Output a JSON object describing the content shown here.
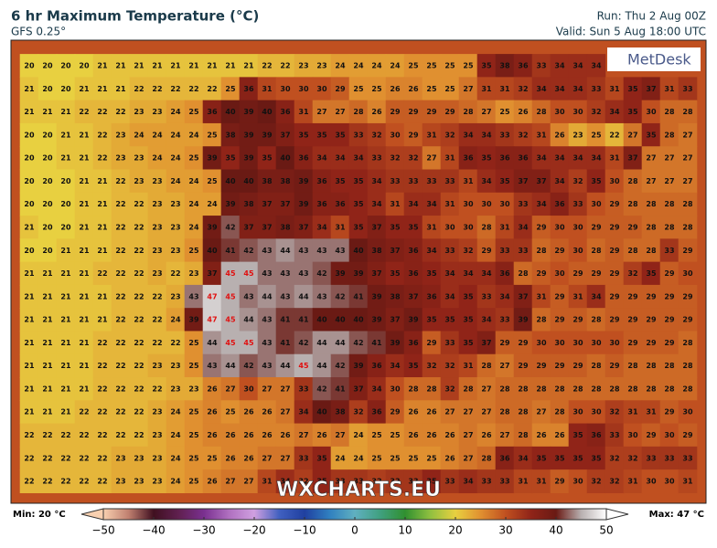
{
  "header": {
    "title": "6 hr Maximum Temperature (°C)",
    "subtitle": "GFS 0.25°",
    "run": "Run: Thu 2 Aug 00Z",
    "valid": "Valid: Sun 5 Aug 18:00 UTC"
  },
  "logo": "MetDesk",
  "watermark": "WXCHARTS.EU",
  "grid": {
    "rows": [
      [
        20,
        20,
        20,
        20,
        21,
        21,
        21,
        21,
        21,
        21,
        21,
        21,
        21,
        22,
        22,
        23,
        23,
        24,
        24,
        24,
        24,
        25,
        25,
        25,
        25,
        35,
        38,
        36,
        33,
        34,
        34,
        34
      ],
      [
        21,
        20,
        20,
        21,
        21,
        21,
        22,
        22,
        22,
        22,
        22,
        25,
        36,
        31,
        30,
        30,
        30,
        29,
        25,
        25,
        26,
        26,
        25,
        25,
        27,
        31,
        31,
        32,
        34,
        34,
        34,
        33,
        31,
        35,
        37,
        31,
        33
      ],
      [
        21,
        21,
        21,
        22,
        22,
        22,
        23,
        23,
        24,
        25,
        36,
        40,
        39,
        40,
        36,
        31,
        27,
        27,
        28,
        26,
        29,
        29,
        29,
        29,
        28,
        27,
        25,
        26,
        28,
        30,
        30,
        32,
        34,
        35,
        30,
        28,
        28
      ],
      [
        20,
        20,
        21,
        21,
        22,
        23,
        24,
        24,
        24,
        24,
        25,
        38,
        39,
        39,
        37,
        35,
        35,
        35,
        33,
        32,
        30,
        29,
        31,
        32,
        34,
        34,
        33,
        32,
        31,
        26,
        23,
        25,
        22,
        27,
        35,
        28,
        27
      ],
      [
        20,
        20,
        21,
        21,
        22,
        23,
        23,
        24,
        24,
        25,
        39,
        35,
        39,
        35,
        40,
        36,
        34,
        34,
        34,
        33,
        32,
        32,
        27,
        31,
        36,
        35,
        36,
        36,
        34,
        34,
        34,
        34,
        31,
        37,
        27,
        27,
        27
      ],
      [
        20,
        20,
        20,
        21,
        21,
        22,
        23,
        23,
        24,
        24,
        25,
        40,
        40,
        38,
        38,
        39,
        36,
        35,
        35,
        34,
        33,
        33,
        33,
        33,
        31,
        34,
        35,
        37,
        37,
        34,
        32,
        35,
        30,
        28,
        27,
        27,
        27
      ],
      [
        20,
        20,
        20,
        21,
        21,
        22,
        22,
        23,
        23,
        24,
        24,
        39,
        38,
        37,
        37,
        39,
        36,
        36,
        35,
        34,
        31,
        34,
        34,
        31,
        30,
        30,
        30,
        33,
        34,
        36,
        33,
        30,
        29,
        28,
        28,
        28,
        28
      ],
      [
        21,
        20,
        20,
        21,
        21,
        22,
        22,
        23,
        23,
        24,
        39,
        42,
        37,
        37,
        38,
        37,
        34,
        31,
        35,
        37,
        35,
        35,
        31,
        30,
        30,
        28,
        31,
        34,
        29,
        30,
        30,
        29,
        29,
        29,
        28,
        28,
        28
      ],
      [
        20,
        20,
        21,
        21,
        21,
        22,
        22,
        23,
        23,
        25,
        40,
        41,
        42,
        43,
        44,
        43,
        43,
        43,
        40,
        38,
        37,
        36,
        34,
        33,
        32,
        29,
        33,
        33,
        28,
        29,
        30,
        28,
        29,
        28,
        28,
        33,
        29
      ],
      [
        21,
        21,
        21,
        21,
        22,
        22,
        22,
        23,
        22,
        23,
        37,
        45,
        45,
        43,
        43,
        43,
        42,
        39,
        39,
        37,
        35,
        36,
        35,
        34,
        34,
        34,
        36,
        28,
        29,
        30,
        29,
        29,
        29,
        32,
        35,
        29,
        30
      ],
      [
        21,
        21,
        21,
        21,
        21,
        22,
        22,
        22,
        23,
        43,
        47,
        45,
        43,
        44,
        43,
        44,
        43,
        42,
        41,
        39,
        38,
        37,
        36,
        34,
        35,
        33,
        34,
        37,
        31,
        29,
        31,
        34,
        29,
        29,
        29,
        29,
        29
      ],
      [
        21,
        21,
        21,
        21,
        21,
        22,
        22,
        22,
        24,
        39,
        47,
        45,
        44,
        43,
        41,
        41,
        40,
        40,
        40,
        39,
        37,
        39,
        35,
        35,
        35,
        34,
        33,
        39,
        28,
        29,
        29,
        28,
        29,
        29,
        29,
        29,
        29
      ],
      [
        21,
        21,
        21,
        21,
        22,
        22,
        22,
        22,
        22,
        25,
        44,
        45,
        45,
        43,
        41,
        42,
        44,
        44,
        42,
        41,
        39,
        36,
        29,
        33,
        35,
        37,
        29,
        29,
        30,
        30,
        30,
        30,
        30,
        29,
        29,
        29,
        28
      ],
      [
        21,
        21,
        21,
        21,
        22,
        22,
        22,
        23,
        23,
        25,
        43,
        44,
        42,
        43,
        44,
        45,
        44,
        42,
        39,
        36,
        34,
        35,
        32,
        32,
        31,
        28,
        27,
        29,
        29,
        29,
        29,
        28,
        29,
        28,
        28,
        28,
        28
      ],
      [
        21,
        21,
        21,
        21,
        22,
        22,
        22,
        22,
        23,
        23,
        26,
        27,
        30,
        27,
        27,
        33,
        42,
        41,
        37,
        34,
        30,
        28,
        28,
        32,
        28,
        27,
        28,
        28,
        28,
        28,
        28,
        28,
        28,
        28,
        28,
        28,
        28
      ],
      [
        21,
        21,
        21,
        22,
        22,
        22,
        22,
        23,
        24,
        25,
        26,
        25,
        26,
        26,
        27,
        34,
        40,
        38,
        32,
        36,
        29,
        26,
        26,
        27,
        27,
        27,
        28,
        28,
        27,
        28,
        30,
        30,
        32,
        31,
        31,
        29,
        30
      ],
      [
        22,
        22,
        22,
        22,
        22,
        22,
        22,
        23,
        24,
        25,
        26,
        26,
        26,
        26,
        26,
        27,
        26,
        27,
        24,
        25,
        25,
        26,
        26,
        26,
        27,
        26,
        27,
        28,
        26,
        26,
        35,
        36,
        33,
        30,
        29,
        30,
        29
      ],
      [
        22,
        22,
        22,
        22,
        22,
        23,
        23,
        23,
        24,
        25,
        25,
        26,
        26,
        27,
        27,
        33,
        35,
        24,
        24,
        25,
        25,
        25,
        25,
        26,
        27,
        28,
        36,
        34,
        35,
        35,
        35,
        35,
        32,
        32,
        33,
        33,
        33
      ],
      [
        22,
        22,
        22,
        22,
        22,
        23,
        23,
        23,
        24,
        25,
        26,
        27,
        27,
        31,
        34,
        32,
        35,
        33,
        33,
        32,
        33,
        33,
        35,
        33,
        34,
        33,
        33,
        31,
        31,
        29,
        30,
        32,
        32,
        31,
        30,
        30,
        31
      ]
    ]
  },
  "colorbar": {
    "min_label": "Min: 20 °C",
    "max_label": "Max: 47 °C",
    "lim": [
      -50,
      50
    ],
    "ticks": [
      {
        "value": -50,
        "label": "−50"
      },
      {
        "value": -40,
        "label": "−40"
      },
      {
        "value": -30,
        "label": "−30"
      },
      {
        "value": -20,
        "label": "−20"
      },
      {
        "value": -10,
        "label": "−10"
      },
      0,
      10,
      20,
      30,
      40,
      50
    ],
    "colors": [
      "#f8d0b0",
      "#c08070",
      "#401020",
      "#602050",
      "#7a3090",
      "#b070c0",
      "#d0a0e0",
      "#4060c0",
      "#2040a0",
      "#3080c0",
      "#60b0c0",
      "#40a080",
      "#309030",
      "#90c040",
      "#e8d040",
      "#e09030",
      "#c05020",
      "#902418",
      "#6a1a14",
      "#b8b0b0",
      "#ffffff"
    ]
  }
}
